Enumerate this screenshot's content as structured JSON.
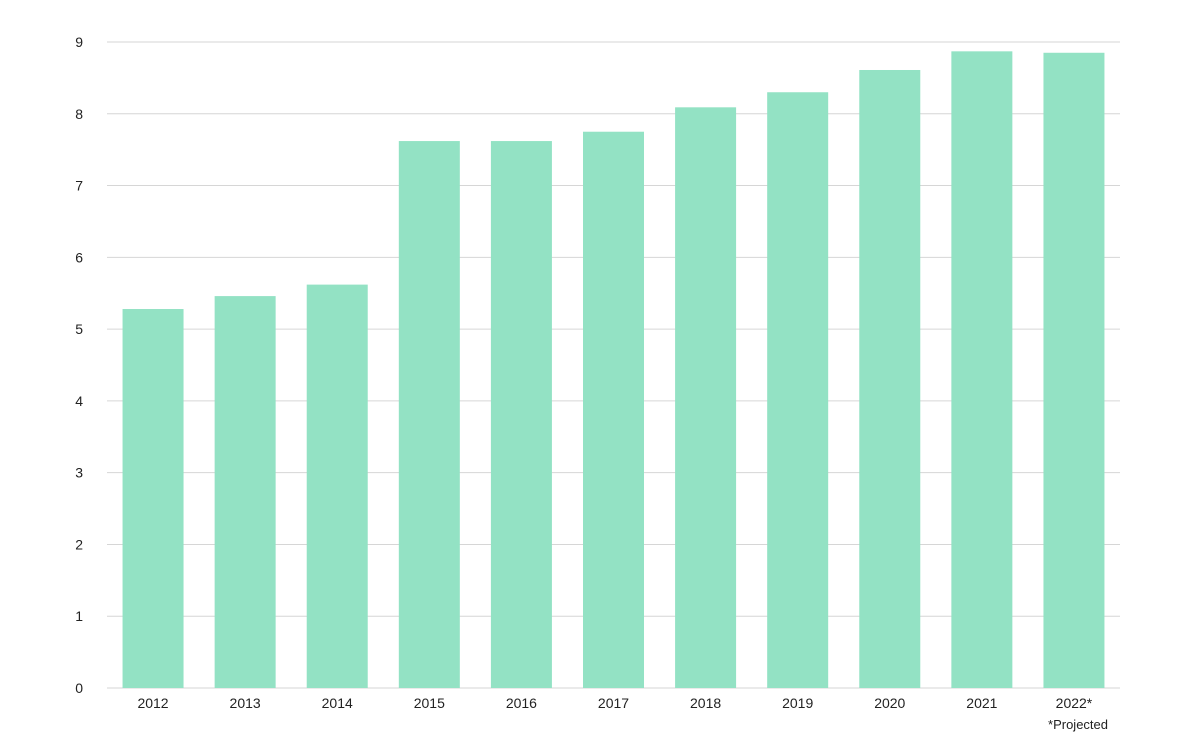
{
  "chart_data": {
    "type": "bar",
    "title": "",
    "xlabel": "",
    "ylabel": "",
    "categories": [
      "2012",
      "2013",
      "2014",
      "2015",
      "2016",
      "2017",
      "2018",
      "2019",
      "2020",
      "2021",
      "2022*"
    ],
    "values": [
      5.28,
      5.46,
      5.62,
      7.62,
      7.62,
      7.75,
      8.09,
      8.3,
      8.61,
      8.87,
      8.85
    ],
    "ylim": [
      0,
      9
    ],
    "yticks": [
      0,
      1,
      2,
      3,
      4,
      5,
      6,
      7,
      8,
      9
    ],
    "grid": true,
    "legend": "none",
    "bar_color": "#93e2c4",
    "footnote": "*Projected"
  }
}
